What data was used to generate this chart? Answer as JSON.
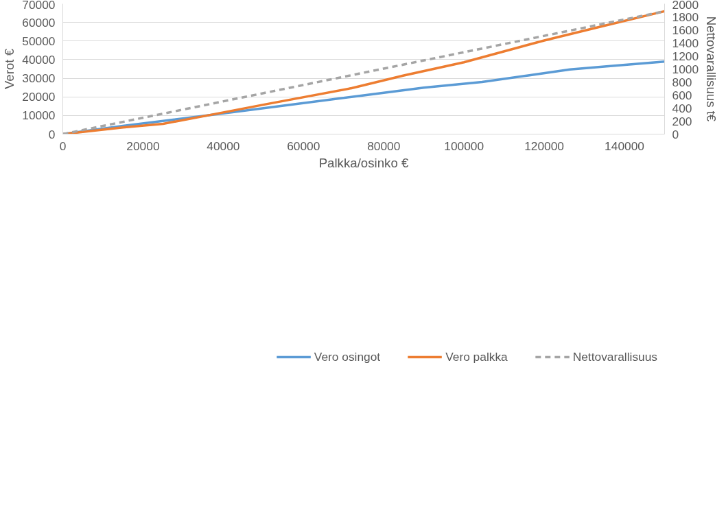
{
  "chart_data": {
    "type": "line",
    "xlabel": "Palkka/osinko €",
    "ylabel": "Verot €",
    "y2label": "Nettovarallisuus t€",
    "xlim": [
      0,
      150000
    ],
    "xticks": [
      0,
      20000,
      40000,
      60000,
      80000,
      100000,
      120000,
      140000
    ],
    "ylim": [
      0,
      70000
    ],
    "yticks": [
      0,
      10000,
      20000,
      30000,
      40000,
      50000,
      60000,
      70000
    ],
    "y2lim": [
      0,
      2000
    ],
    "y2ticks": [
      0,
      200,
      400,
      600,
      800,
      1000,
      1200,
      1400,
      1600,
      1800,
      2000
    ],
    "grid": "y",
    "legend": "bottom",
    "series": [
      {
        "name": "Vero osingot",
        "color": "#5b9bd5",
        "line_style": "solid",
        "x": [
          0,
          15000,
          36000,
          54000,
          72000,
          90000,
          104500,
          116000,
          126400,
          135500,
          150000
        ],
        "values": [
          0,
          4400,
          10000,
          15000,
          20000,
          25000,
          28000,
          31500,
          34700,
          36400,
          39000
        ]
      },
      {
        "name": "Vero palkka",
        "color": "#ed7d31",
        "line_style": "solid",
        "x": [
          0,
          15000,
          25000,
          36000,
          50000,
          72000,
          85000,
          100000,
          120000,
          135000,
          150000
        ],
        "values": [
          0,
          3600,
          5500,
          10000,
          15800,
          24700,
          31500,
          38600,
          50300,
          58200,
          66000
        ]
      },
      {
        "name": "Nettovarallisuus",
        "color": "#a5a5a5",
        "line_style": "dashed",
        "axis": "y2",
        "x": [
          0,
          150000
        ],
        "values": [
          0,
          1885
        ]
      }
    ]
  }
}
